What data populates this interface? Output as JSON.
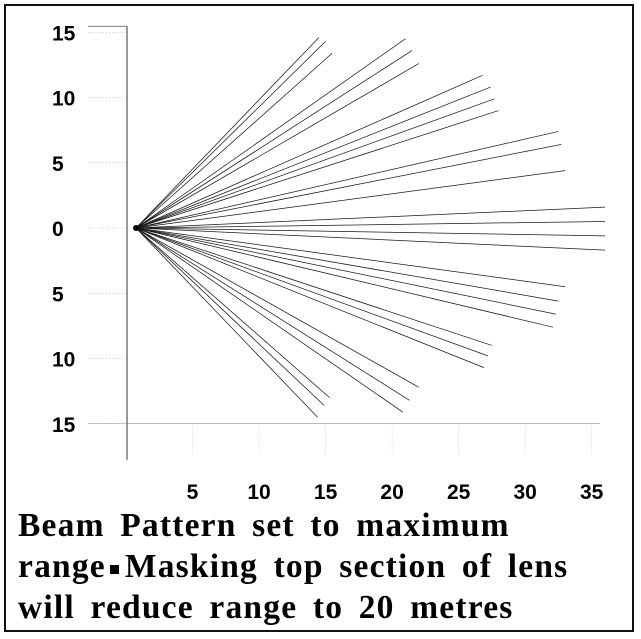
{
  "chart_data": {
    "type": "line",
    "title": "",
    "xlabel": "",
    "ylabel": "",
    "xlim": [
      0,
      36
    ],
    "ylim": [
      -15,
      15
    ],
    "x_ticks": [
      5,
      10,
      15,
      20,
      25,
      30,
      35
    ],
    "y_ticks": [
      15,
      10,
      5,
      0,
      -5,
      -10,
      -15
    ],
    "y_tick_labels": [
      "15",
      "10",
      "5",
      "0",
      "5",
      "10",
      "15"
    ],
    "origin": [
      0,
      0
    ],
    "grid": false,
    "beam_groups": [
      {
        "name": "",
        "ends": [
          [
            14.5,
            14.6
          ],
          [
            15.0,
            14.3
          ],
          [
            15.5,
            13.4
          ]
        ]
      },
      {
        "name": "",
        "ends": [
          [
            21.0,
            14.5
          ],
          [
            21.5,
            13.6
          ],
          [
            22.0,
            12.6
          ]
        ]
      },
      {
        "name": "",
        "ends": [
          [
            26.8,
            11.7
          ],
          [
            27.4,
            10.8
          ],
          [
            27.7,
            9.9
          ],
          [
            28.0,
            9.0
          ]
        ]
      },
      {
        "name": "",
        "ends": [
          [
            32.5,
            7.4
          ],
          [
            32.7,
            6.4
          ],
          [
            33.0,
            4.4
          ]
        ]
      },
      {
        "name": "",
        "ends": [
          [
            36.0,
            1.6
          ],
          [
            36.0,
            0.5
          ],
          [
            36.0,
            -0.6
          ],
          [
            36.0,
            -1.7
          ]
        ]
      },
      {
        "name": "",
        "ends": [
          [
            33.0,
            -4.5
          ],
          [
            32.5,
            -5.6
          ],
          [
            32.3,
            -6.6
          ],
          [
            32.1,
            -7.6
          ]
        ]
      },
      {
        "name": "",
        "ends": [
          [
            27.5,
            -9.0
          ],
          [
            27.2,
            -9.8
          ],
          [
            26.9,
            -10.7
          ]
        ]
      },
      {
        "name": "",
        "ends": [
          [
            22.0,
            -12.2
          ],
          [
            21.3,
            -13.2
          ],
          [
            20.8,
            -14.1
          ]
        ]
      },
      {
        "name": "",
        "ends": [
          [
            15.3,
            -13.0
          ],
          [
            14.9,
            -13.6
          ],
          [
            14.4,
            -14.5
          ]
        ]
      }
    ]
  },
  "caption": {
    "line1": "Beam Pattern set to maximum",
    "line2_a": "range",
    "line2_b": "Masking top section of lens",
    "line3": "will reduce range to 20 metres"
  }
}
